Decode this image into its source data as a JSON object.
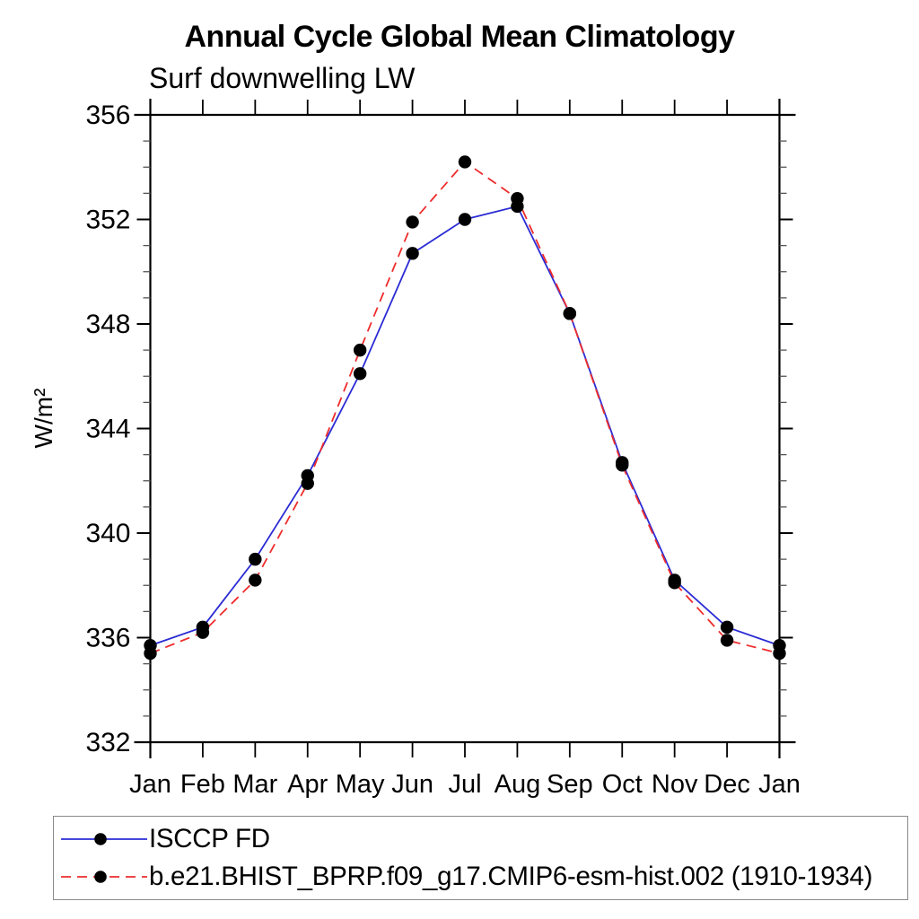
{
  "header": {
    "title": "Annual Cycle Global Mean Climatology",
    "subtitle": "Surf downwelling LW"
  },
  "chart_data": {
    "type": "line",
    "title": "Annual Cycle Global Mean Climatology",
    "subtitle": "Surf downwelling LW",
    "ylabel": "W/m²",
    "xlabel": "",
    "x": [
      "Jan",
      "Feb",
      "Mar",
      "Apr",
      "May",
      "Jun",
      "Jul",
      "Aug",
      "Sep",
      "Oct",
      "Nov",
      "Dec",
      "Jan"
    ],
    "ylim": [
      332,
      356
    ],
    "ytick_major_step": 4,
    "ytick_minor_step": 1,
    "ytick_labels": [
      "332",
      "336",
      "340",
      "344",
      "348",
      "352",
      "356"
    ],
    "grid": "off",
    "legend_position": "bottom-left-box",
    "axis_color": "#000000",
    "marker_color": "#000000",
    "series": [
      {
        "name": "ISCCP FD",
        "color": "#2b2bd5",
        "style": "solid",
        "marker": "circle",
        "values": [
          335.7,
          336.4,
          339.0,
          342.2,
          346.1,
          350.7,
          352.0,
          352.5,
          348.4,
          342.7,
          338.2,
          336.4,
          335.7
        ]
      },
      {
        "name": "b.e21.BHIST_BPRP.f09_g17.CMIP6-esm-hist.002 (1910-1934)",
        "color": "#ee2c2c",
        "style": "dashed",
        "marker": "circle",
        "values": [
          335.4,
          336.2,
          338.2,
          341.9,
          347.0,
          351.9,
          354.2,
          352.8,
          348.4,
          342.6,
          338.1,
          335.9,
          335.4
        ]
      }
    ]
  }
}
